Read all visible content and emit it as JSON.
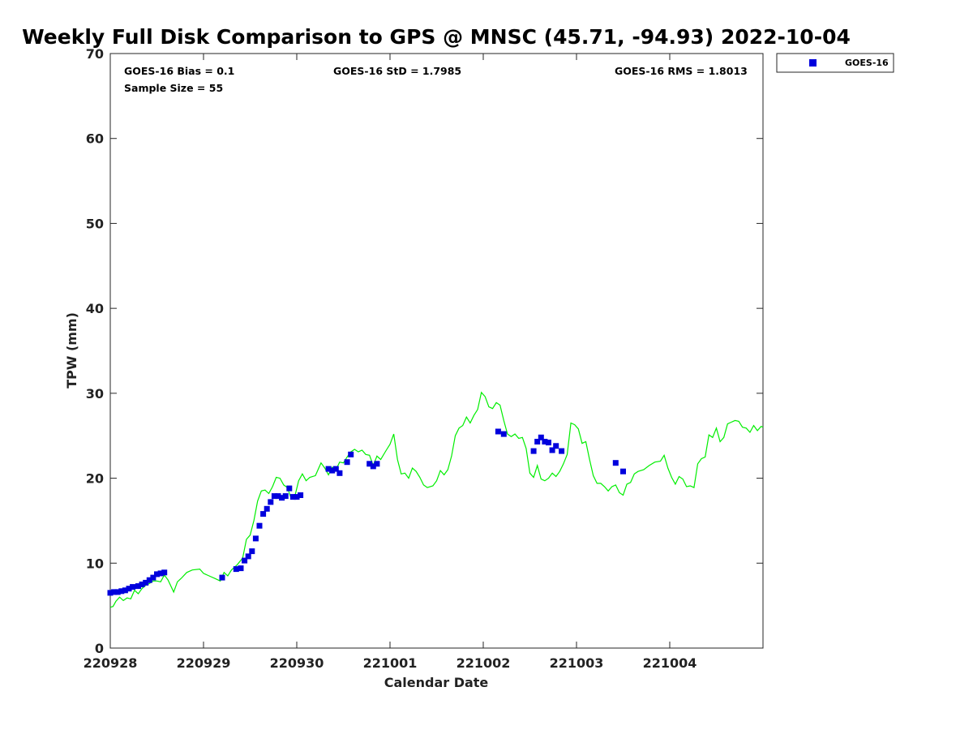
{
  "chart_data": {
    "type": "scatter",
    "title": "Weekly Full Disk Comparison to GPS @ MNSC (45.71, -94.93) 2022-10-04",
    "xlabel": "Calendar Date",
    "ylabel": "TPW (mm)",
    "xlim": [
      0,
      7
    ],
    "ylim": [
      0,
      70
    ],
    "x_ticks": [
      {
        "value": 0,
        "label": "220928"
      },
      {
        "value": 1,
        "label": "220929"
      },
      {
        "value": 2,
        "label": "220930"
      },
      {
        "value": 3,
        "label": "221001"
      },
      {
        "value": 4,
        "label": "221002"
      },
      {
        "value": 5,
        "label": "221003"
      },
      {
        "value": 6,
        "label": "221004"
      }
    ],
    "y_ticks": [
      0,
      10,
      20,
      30,
      40,
      50,
      60,
      70
    ],
    "stats": {
      "bias": "GOES-16 Bias = 0.1",
      "std": "GOES-16 StD = 1.7985",
      "rms": "GOES-16 RMS = 1.8013",
      "sample": "Sample Size = 55"
    },
    "legend": {
      "label": "GOES-16",
      "placement": "top-right outside"
    },
    "colors": {
      "goes": "#0000dd",
      "gps": "#00ee00"
    },
    "series": [
      {
        "name": "GOES-16",
        "marker": "square",
        "points": [
          [
            0.0,
            6.5
          ],
          [
            0.04,
            6.6
          ],
          [
            0.08,
            6.6
          ],
          [
            0.12,
            6.7
          ],
          [
            0.16,
            6.8
          ],
          [
            0.2,
            7.0
          ],
          [
            0.24,
            7.2
          ],
          [
            0.3,
            7.3
          ],
          [
            0.34,
            7.5
          ],
          [
            0.38,
            7.7
          ],
          [
            0.42,
            8.0
          ],
          [
            0.46,
            8.3
          ],
          [
            0.5,
            8.7
          ],
          [
            0.54,
            8.8
          ],
          [
            0.58,
            8.9
          ],
          [
            1.2,
            8.3
          ],
          [
            1.35,
            9.3
          ],
          [
            1.4,
            9.4
          ],
          [
            1.44,
            10.3
          ],
          [
            1.48,
            10.8
          ],
          [
            1.52,
            11.4
          ],
          [
            1.56,
            12.9
          ],
          [
            1.6,
            14.4
          ],
          [
            1.64,
            15.8
          ],
          [
            1.68,
            16.4
          ],
          [
            1.72,
            17.2
          ],
          [
            1.76,
            17.9
          ],
          [
            1.8,
            17.9
          ],
          [
            1.84,
            17.7
          ],
          [
            1.88,
            17.9
          ],
          [
            1.92,
            18.8
          ],
          [
            1.96,
            17.8
          ],
          [
            2.0,
            17.8
          ],
          [
            2.04,
            18.0
          ],
          [
            2.34,
            21.1
          ],
          [
            2.38,
            20.9
          ],
          [
            2.42,
            21.1
          ],
          [
            2.46,
            20.6
          ],
          [
            2.54,
            21.9
          ],
          [
            2.58,
            22.8
          ],
          [
            2.78,
            21.7
          ],
          [
            2.82,
            21.4
          ],
          [
            2.86,
            21.7
          ],
          [
            4.16,
            25.5
          ],
          [
            4.22,
            25.2
          ],
          [
            4.54,
            23.2
          ],
          [
            4.58,
            24.3
          ],
          [
            4.62,
            24.8
          ],
          [
            4.66,
            24.3
          ],
          [
            4.7,
            24.2
          ],
          [
            4.74,
            23.3
          ],
          [
            4.78,
            23.8
          ],
          [
            4.84,
            23.2
          ],
          [
            5.42,
            21.8
          ],
          [
            5.5,
            20.8
          ]
        ]
      },
      {
        "name": "",
        "line": true,
        "points": [
          [
            0.0,
            4.8
          ],
          [
            0.03,
            4.9
          ],
          [
            0.06,
            5.5
          ],
          [
            0.1,
            6.0
          ],
          [
            0.14,
            5.6
          ],
          [
            0.18,
            5.9
          ],
          [
            0.22,
            5.8
          ],
          [
            0.26,
            6.8
          ],
          [
            0.3,
            6.4
          ],
          [
            0.34,
            7.0
          ],
          [
            0.38,
            7.4
          ],
          [
            0.42,
            7.6
          ],
          [
            0.46,
            7.9
          ],
          [
            0.5,
            7.9
          ],
          [
            0.54,
            7.8
          ],
          [
            0.58,
            8.6
          ],
          [
            0.62,
            8.0
          ],
          [
            0.68,
            6.6
          ],
          [
            0.72,
            7.8
          ],
          [
            0.76,
            8.2
          ],
          [
            0.82,
            8.9
          ],
          [
            0.88,
            9.2
          ],
          [
            0.96,
            9.3
          ],
          [
            1.0,
            8.8
          ],
          [
            1.06,
            8.5
          ],
          [
            1.12,
            8.2
          ],
          [
            1.18,
            7.9
          ],
          [
            1.22,
            8.9
          ],
          [
            1.26,
            8.5
          ],
          [
            1.3,
            9.2
          ],
          [
            1.36,
            9.8
          ],
          [
            1.42,
            10.6
          ],
          [
            1.46,
            12.8
          ],
          [
            1.5,
            13.3
          ],
          [
            1.54,
            15.0
          ],
          [
            1.58,
            17.3
          ],
          [
            1.62,
            18.5
          ],
          [
            1.66,
            18.6
          ],
          [
            1.7,
            18.2
          ],
          [
            1.74,
            19.0
          ],
          [
            1.78,
            20.1
          ],
          [
            1.82,
            20.0
          ],
          [
            1.86,
            19.2
          ],
          [
            1.9,
            18.9
          ],
          [
            1.94,
            17.6
          ],
          [
            1.98,
            17.9
          ],
          [
            2.02,
            19.7
          ],
          [
            2.06,
            20.5
          ],
          [
            2.1,
            19.7
          ],
          [
            2.14,
            20.1
          ],
          [
            2.2,
            20.3
          ],
          [
            2.26,
            21.8
          ],
          [
            2.3,
            21.2
          ],
          [
            2.34,
            20.4
          ],
          [
            2.38,
            21.3
          ],
          [
            2.42,
            21.0
          ],
          [
            2.46,
            21.9
          ],
          [
            2.5,
            21.8
          ],
          [
            2.54,
            22.5
          ],
          [
            2.58,
            23.1
          ],
          [
            2.62,
            23.4
          ],
          [
            2.66,
            23.1
          ],
          [
            2.7,
            23.3
          ],
          [
            2.74,
            22.8
          ],
          [
            2.78,
            22.7
          ],
          [
            2.82,
            21.5
          ],
          [
            2.86,
            22.6
          ],
          [
            2.9,
            22.2
          ],
          [
            2.96,
            23.3
          ],
          [
            3.0,
            24.0
          ],
          [
            3.04,
            25.2
          ],
          [
            3.08,
            22.2
          ],
          [
            3.12,
            20.5
          ],
          [
            3.16,
            20.6
          ],
          [
            3.2,
            20.0
          ],
          [
            3.24,
            21.2
          ],
          [
            3.28,
            20.8
          ],
          [
            3.32,
            20.1
          ],
          [
            3.36,
            19.2
          ],
          [
            3.4,
            18.9
          ],
          [
            3.46,
            19.1
          ],
          [
            3.5,
            19.7
          ],
          [
            3.54,
            20.9
          ],
          [
            3.58,
            20.4
          ],
          [
            3.62,
            21.0
          ],
          [
            3.66,
            22.6
          ],
          [
            3.7,
            25.0
          ],
          [
            3.74,
            25.9
          ],
          [
            3.78,
            26.2
          ],
          [
            3.82,
            27.2
          ],
          [
            3.86,
            26.5
          ],
          [
            3.9,
            27.4
          ],
          [
            3.94,
            28.1
          ],
          [
            3.98,
            30.1
          ],
          [
            4.02,
            29.6
          ],
          [
            4.06,
            28.4
          ],
          [
            4.1,
            28.2
          ],
          [
            4.14,
            28.9
          ],
          [
            4.18,
            28.6
          ],
          [
            4.22,
            26.8
          ],
          [
            4.26,
            25.2
          ],
          [
            4.3,
            24.9
          ],
          [
            4.34,
            25.2
          ],
          [
            4.38,
            24.7
          ],
          [
            4.42,
            24.8
          ],
          [
            4.46,
            23.5
          ],
          [
            4.5,
            20.6
          ],
          [
            4.54,
            20.1
          ],
          [
            4.58,
            21.5
          ],
          [
            4.62,
            19.9
          ],
          [
            4.66,
            19.7
          ],
          [
            4.7,
            20.0
          ],
          [
            4.74,
            20.6
          ],
          [
            4.78,
            20.2
          ],
          [
            4.82,
            20.8
          ],
          [
            4.86,
            21.7
          ],
          [
            4.9,
            22.8
          ],
          [
            4.94,
            26.5
          ],
          [
            4.98,
            26.3
          ],
          [
            5.02,
            25.8
          ],
          [
            5.06,
            24.1
          ],
          [
            5.1,
            24.3
          ],
          [
            5.14,
            22.2
          ],
          [
            5.18,
            20.3
          ],
          [
            5.22,
            19.4
          ],
          [
            5.26,
            19.4
          ],
          [
            5.3,
            19.0
          ],
          [
            5.34,
            18.5
          ],
          [
            5.38,
            19.0
          ],
          [
            5.42,
            19.2
          ],
          [
            5.46,
            18.3
          ],
          [
            5.5,
            18.0
          ],
          [
            5.54,
            19.3
          ],
          [
            5.58,
            19.5
          ],
          [
            5.62,
            20.5
          ],
          [
            5.66,
            20.8
          ],
          [
            5.72,
            21.0
          ],
          [
            5.78,
            21.5
          ],
          [
            5.84,
            21.9
          ],
          [
            5.9,
            22.0
          ],
          [
            5.94,
            22.7
          ],
          [
            5.98,
            21.2
          ],
          [
            6.02,
            20.1
          ],
          [
            6.06,
            19.3
          ],
          [
            6.1,
            20.2
          ],
          [
            6.14,
            19.9
          ],
          [
            6.18,
            19.0
          ],
          [
            6.22,
            19.1
          ],
          [
            6.26,
            18.9
          ],
          [
            6.3,
            21.7
          ],
          [
            6.34,
            22.3
          ],
          [
            6.38,
            22.5
          ],
          [
            6.42,
            25.1
          ],
          [
            6.46,
            24.8
          ],
          [
            6.5,
            25.9
          ],
          [
            6.54,
            24.3
          ],
          [
            6.58,
            24.8
          ],
          [
            6.62,
            26.4
          ],
          [
            6.66,
            26.6
          ],
          [
            6.7,
            26.8
          ],
          [
            6.74,
            26.7
          ],
          [
            6.78,
            26.0
          ],
          [
            6.82,
            25.9
          ],
          [
            6.86,
            25.4
          ],
          [
            6.9,
            26.2
          ],
          [
            6.94,
            25.6
          ],
          [
            6.98,
            26.1
          ],
          [
            7.0,
            26.0
          ]
        ]
      }
    ]
  }
}
